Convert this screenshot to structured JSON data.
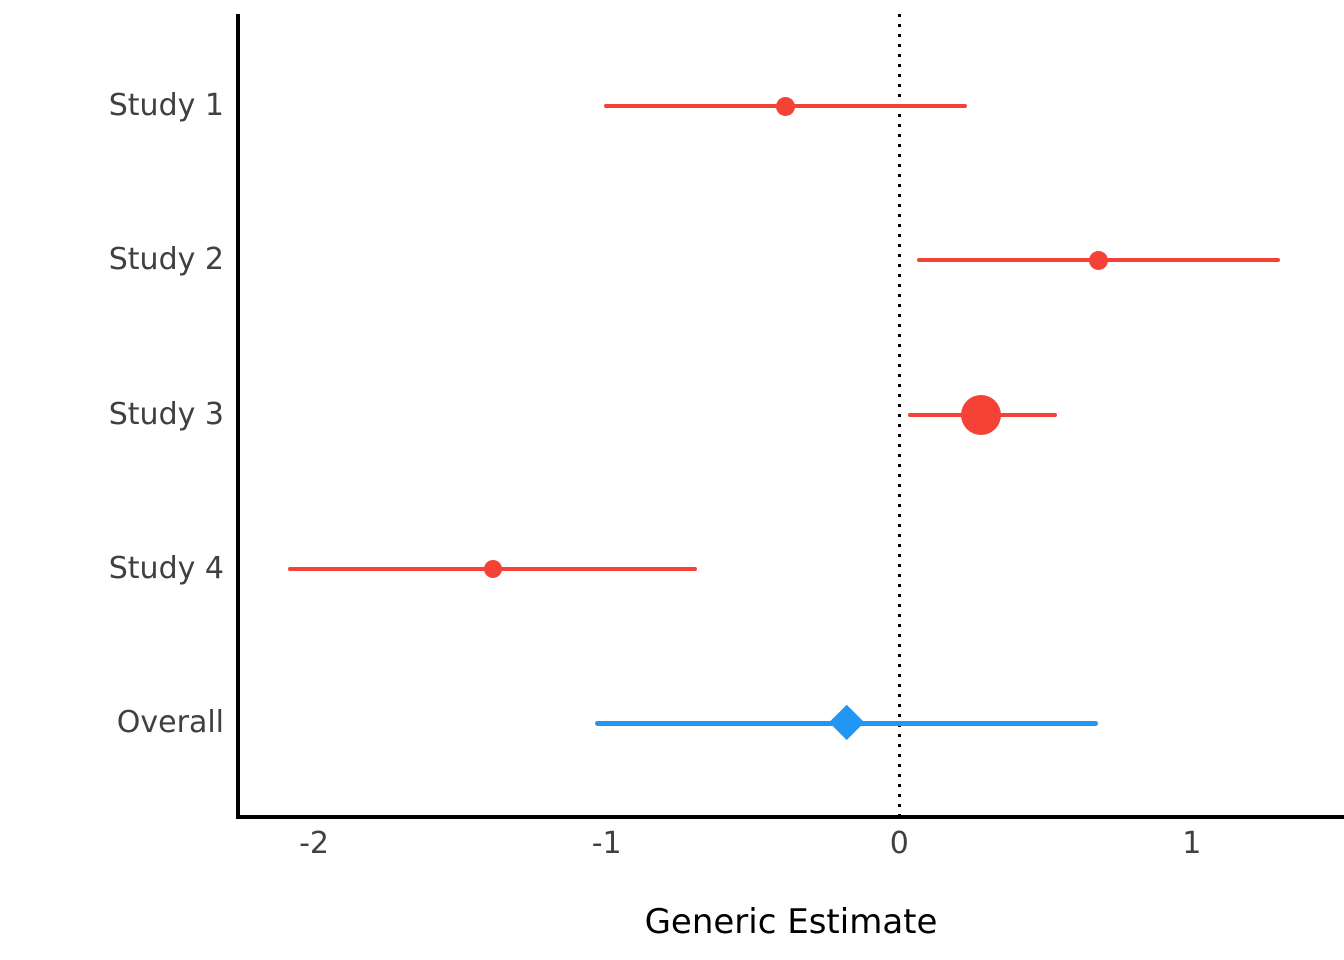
{
  "figure": {
    "background": "#ffffff"
  },
  "chart_data": {
    "type": "forest",
    "xlabel": "Generic Estimate",
    "xlim": [
      -2.26,
      1.52
    ],
    "x_ticks": [
      {
        "value": -2,
        "label": "-2"
      },
      {
        "value": -1,
        "label": "-1"
      },
      {
        "value": 0,
        "label": "0"
      },
      {
        "value": 1,
        "label": "1"
      }
    ],
    "reference_line_x": 0,
    "grid": false,
    "rows": [
      {
        "label": "Study 1",
        "estimate": -0.39,
        "ci_low": -1.01,
        "ci_high": 0.23,
        "marker": "circle",
        "marker_size": 19,
        "color": "#F44336"
      },
      {
        "label": "Study 2",
        "estimate": 0.68,
        "ci_low": 0.06,
        "ci_high": 1.3,
        "marker": "circle",
        "marker_size": 19,
        "color": "#F44336"
      },
      {
        "label": "Study 3",
        "estimate": 0.28,
        "ci_low": 0.03,
        "ci_high": 0.54,
        "marker": "circle",
        "marker_size": 40,
        "color": "#F44336"
      },
      {
        "label": "Study 4",
        "estimate": -1.39,
        "ci_low": -2.09,
        "ci_high": -0.69,
        "marker": "circle",
        "marker_size": 18,
        "color": "#F44336"
      },
      {
        "label": "Overall",
        "estimate": -0.18,
        "ci_low": -1.04,
        "ci_high": 0.68,
        "marker": "diamond",
        "marker_size": 36,
        "color": "#2196F3"
      }
    ],
    "colors": {
      "study": "#F44336",
      "overall": "#2196F3",
      "axis": "#000000",
      "tick_label": "#404040",
      "reference_line": "#000000"
    }
  }
}
